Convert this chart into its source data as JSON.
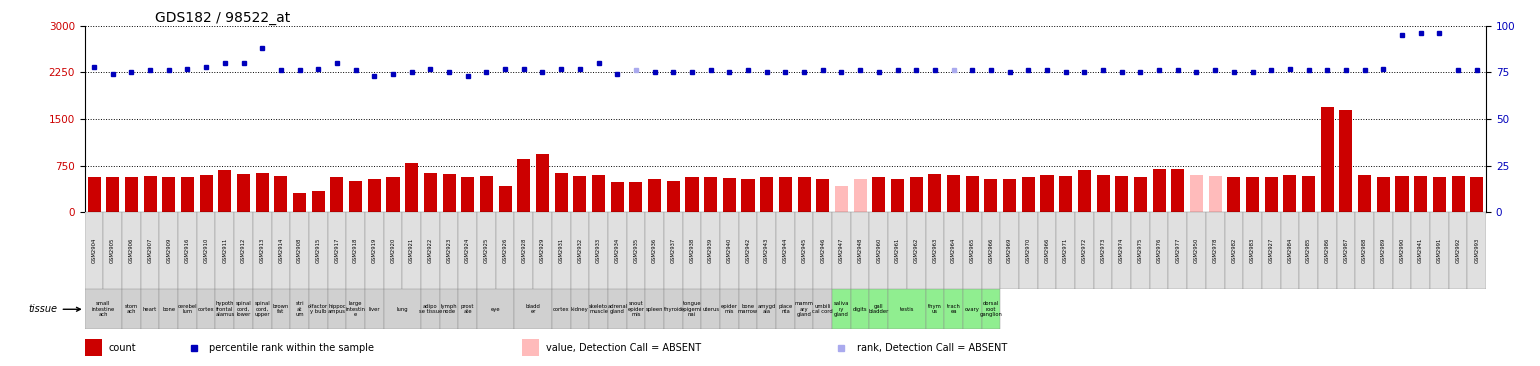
{
  "title": "GDS182 / 98522_at",
  "gsm_ids": [
    "GSM2904",
    "GSM2905",
    "GSM2906",
    "GSM2907",
    "GSM2909",
    "GSM2916",
    "GSM2910",
    "GSM2911",
    "GSM2912",
    "GSM2913",
    "GSM2914",
    "GSM2908",
    "GSM2915",
    "GSM2917",
    "GSM2918",
    "GSM2919",
    "GSM2920",
    "GSM2921",
    "GSM2922",
    "GSM2923",
    "GSM2924",
    "GSM2925",
    "GSM2926",
    "GSM2928",
    "GSM2929",
    "GSM2931",
    "GSM2932",
    "GSM2933",
    "GSM2934",
    "GSM2935",
    "GSM2936",
    "GSM2937",
    "GSM2938",
    "GSM2939",
    "GSM2940",
    "GSM2942",
    "GSM2943",
    "GSM2944",
    "GSM2945",
    "GSM2946",
    "GSM2947",
    "GSM2948",
    "GSM2960",
    "GSM2961",
    "GSM2962",
    "GSM2963",
    "GSM2964",
    "GSM2965",
    "GSM2966",
    "GSM2969",
    "GSM2970",
    "GSM2966",
    "GSM2971",
    "GSM2972",
    "GSM2973",
    "GSM2974",
    "GSM2975",
    "GSM2976",
    "GSM2977",
    "GSM2950",
    "GSM2978",
    "GSM2982",
    "GSM2983",
    "GSM2927",
    "GSM2984",
    "GSM2985",
    "GSM2986",
    "GSM2987",
    "GSM2988",
    "GSM2989",
    "GSM2990",
    "GSM2941",
    "GSM2991",
    "GSM2992",
    "GSM2993"
  ],
  "bar_values": [
    560,
    560,
    560,
    580,
    560,
    570,
    600,
    680,
    620,
    630,
    590,
    310,
    350,
    560,
    500,
    530,
    560,
    790,
    630,
    620,
    560,
    580,
    430,
    850,
    940,
    630,
    580,
    600,
    490,
    490,
    530,
    510,
    560,
    570,
    550,
    540,
    560,
    560,
    560,
    540,
    420,
    530,
    570,
    540,
    560,
    610,
    600,
    590,
    530,
    540,
    560,
    600,
    590,
    680,
    600,
    590,
    560,
    700,
    700,
    600,
    590,
    560,
    560,
    570,
    600,
    580,
    1700,
    1650,
    600,
    570,
    590,
    580,
    560,
    590,
    560
  ],
  "dot_values": [
    78,
    74,
    75,
    76,
    76,
    77,
    78,
    80,
    80,
    88,
    76,
    76,
    77,
    80,
    76,
    73,
    74,
    75,
    77,
    75,
    73,
    75,
    77,
    77,
    75,
    77,
    77,
    80,
    74,
    76,
    75,
    75,
    75,
    76,
    75,
    76,
    75,
    75,
    75,
    76,
    75,
    76,
    75,
    76,
    76,
    76,
    76,
    76,
    76,
    75,
    76,
    76,
    75,
    75,
    76,
    75,
    75,
    76,
    76,
    75,
    76,
    75,
    75,
    76,
    77,
    76,
    76,
    76,
    76,
    77,
    95,
    96,
    96,
    76,
    76
  ],
  "absent_bar_indices": [
    40,
    41,
    59,
    60
  ],
  "absent_dot_indices": [
    29,
    46
  ],
  "ylim_left": [
    0,
    3000
  ],
  "ylim_right": [
    0,
    100
  ],
  "yticks_left": [
    0,
    750,
    1500,
    2250,
    3000
  ],
  "yticks_right": [
    0,
    25,
    50,
    75,
    100
  ],
  "bar_color": "#cc0000",
  "bar_absent_color": "#ffbbbb",
  "dot_color": "#0000bb",
  "dot_absent_color": "#aaaaee",
  "bg_color_gray": "#d0d0d0",
  "bg_color_green": "#90ee90",
  "tissue_groups": [
    {
      "label": "small\nintestine\nach",
      "start": 0,
      "end": 1,
      "bg": "gray"
    },
    {
      "label": "stom\nach",
      "start": 2,
      "end": 2,
      "bg": "gray"
    },
    {
      "label": "heart",
      "start": 3,
      "end": 3,
      "bg": "gray"
    },
    {
      "label": "bone",
      "start": 4,
      "end": 4,
      "bg": "gray"
    },
    {
      "label": "cerebel\nlum",
      "start": 5,
      "end": 5,
      "bg": "gray"
    },
    {
      "label": "cortex",
      "start": 6,
      "end": 6,
      "bg": "gray"
    },
    {
      "label": "hypoth\nfrontal\nalamus",
      "start": 7,
      "end": 7,
      "bg": "gray"
    },
    {
      "label": "spinal\ncord,\nlower",
      "start": 8,
      "end": 8,
      "bg": "gray"
    },
    {
      "label": "spinal\ncord,\nupper",
      "start": 9,
      "end": 9,
      "bg": "gray"
    },
    {
      "label": "brown\nfat",
      "start": 10,
      "end": 10,
      "bg": "gray"
    },
    {
      "label": "stri\nat\num",
      "start": 11,
      "end": 11,
      "bg": "gray"
    },
    {
      "label": "olfactor\ny bulb",
      "start": 12,
      "end": 12,
      "bg": "gray"
    },
    {
      "label": "hippoc\nampus",
      "start": 13,
      "end": 13,
      "bg": "gray"
    },
    {
      "label": "large\nintestin\ne",
      "start": 14,
      "end": 14,
      "bg": "gray"
    },
    {
      "label": "liver",
      "start": 15,
      "end": 15,
      "bg": "gray"
    },
    {
      "label": "lung",
      "start": 16,
      "end": 17,
      "bg": "gray"
    },
    {
      "label": "adipo\nse tissue",
      "start": 18,
      "end": 18,
      "bg": "gray"
    },
    {
      "label": "lymph\nnode",
      "start": 19,
      "end": 19,
      "bg": "gray"
    },
    {
      "label": "prost\nate",
      "start": 20,
      "end": 20,
      "bg": "gray"
    },
    {
      "label": "eye",
      "start": 21,
      "end": 22,
      "bg": "gray"
    },
    {
      "label": "bladd\ner",
      "start": 23,
      "end": 24,
      "bg": "gray"
    },
    {
      "label": "cortex",
      "start": 25,
      "end": 25,
      "bg": "gray"
    },
    {
      "label": "kidney",
      "start": 26,
      "end": 26,
      "bg": "gray"
    },
    {
      "label": "skeleto\nmuscle",
      "start": 27,
      "end": 27,
      "bg": "gray"
    },
    {
      "label": "adrenal\ngland",
      "start": 28,
      "end": 28,
      "bg": "gray"
    },
    {
      "label": "snout\nepider\nmis",
      "start": 29,
      "end": 29,
      "bg": "gray"
    },
    {
      "label": "spleen",
      "start": 30,
      "end": 30,
      "bg": "gray"
    },
    {
      "label": "thyroid",
      "start": 31,
      "end": 31,
      "bg": "gray"
    },
    {
      "label": "tongue\nepigemi\nnai",
      "start": 32,
      "end": 32,
      "bg": "gray"
    },
    {
      "label": "uterus",
      "start": 33,
      "end": 33,
      "bg": "gray"
    },
    {
      "label": "epider\nmis",
      "start": 34,
      "end": 34,
      "bg": "gray"
    },
    {
      "label": "bone\nmarrow",
      "start": 35,
      "end": 35,
      "bg": "gray"
    },
    {
      "label": "amygd\nala",
      "start": 36,
      "end": 36,
      "bg": "gray"
    },
    {
      "label": "place\nnta",
      "start": 37,
      "end": 37,
      "bg": "gray"
    },
    {
      "label": "mamm\nary\ngland",
      "start": 38,
      "end": 38,
      "bg": "gray"
    },
    {
      "label": "umbili\ncal cord",
      "start": 39,
      "end": 39,
      "bg": "gray"
    },
    {
      "label": "saliva\nry\ngland",
      "start": 40,
      "end": 40,
      "bg": "green"
    },
    {
      "label": "digits",
      "start": 41,
      "end": 41,
      "bg": "green"
    },
    {
      "label": "gall\nbladder",
      "start": 42,
      "end": 42,
      "bg": "green"
    },
    {
      "label": "testis",
      "start": 43,
      "end": 44,
      "bg": "green"
    },
    {
      "label": "thym\nus",
      "start": 45,
      "end": 45,
      "bg": "green"
    },
    {
      "label": "trach\nea",
      "start": 46,
      "end": 46,
      "bg": "green"
    },
    {
      "label": "ovary",
      "start": 47,
      "end": 47,
      "bg": "green"
    },
    {
      "label": "dorsal\nroot\nganglion",
      "start": 48,
      "end": 48,
      "bg": "green"
    }
  ],
  "legend_items": [
    {
      "label": "count",
      "color": "#cc0000",
      "type": "rect"
    },
    {
      "label": "percentile rank within the sample",
      "color": "#0000bb",
      "type": "square"
    },
    {
      "label": "value, Detection Call = ABSENT",
      "color": "#ffbbbb",
      "type": "rect"
    },
    {
      "label": "rank, Detection Call = ABSENT",
      "color": "#aaaaee",
      "type": "square"
    }
  ]
}
